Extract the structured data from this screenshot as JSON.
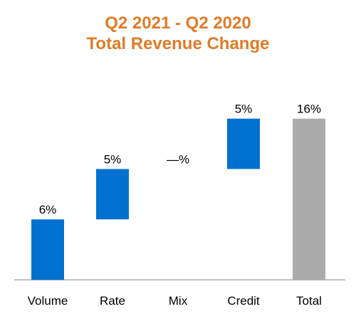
{
  "chart_data": {
    "type": "waterfall",
    "title": "Q2 2021 - Q2 2020",
    "subtitle": "Total Revenue Change",
    "categories": [
      "Volume",
      "Rate",
      "Mix",
      "Credit",
      "Total"
    ],
    "values": [
      6,
      5,
      0,
      5,
      16
    ],
    "data_labels": [
      "6%",
      "5%",
      "—%",
      "5%",
      "16%"
    ],
    "is_total": [
      false,
      false,
      false,
      false,
      true
    ],
    "ylim": [
      0,
      16
    ],
    "grid": false,
    "legend": "none",
    "colors": {
      "title": "#E07B28",
      "increase": "#0071CE",
      "total": "#ABABAB",
      "axis": "#7F7F7F"
    }
  }
}
